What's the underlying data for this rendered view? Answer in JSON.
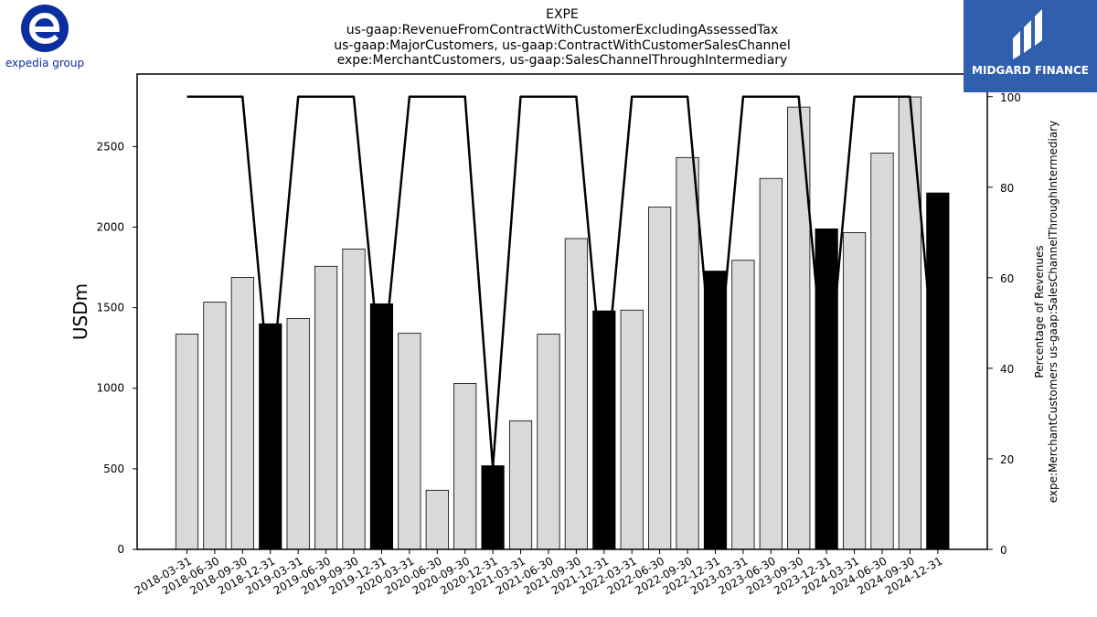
{
  "brand": {
    "left_logo_text": "expedia group",
    "right_logo_text": "MIDGARD FINANCE",
    "left_logo_color": "#0b2fa0",
    "right_logo_bg": "#2f5fad"
  },
  "chart_data": {
    "type": "bar",
    "title_lines": [
      "EXPE",
      "us-gaap:RevenueFromContractWithCustomerExcludingAssessedTax",
      "us-gaap:MajorCustomers, us-gaap:ContractWithCustomerSalesChannel",
      "expe:MerchantCustomers, us-gaap:SalesChannelThroughIntermediary"
    ],
    "ylabel": "USDm",
    "y2label_lines": [
      "Percentage of Revenues",
      "expe:MerchantCustomers us-gaap:SalesChannelThroughIntermediary"
    ],
    "categories": [
      "2018-03-31",
      "2018-06-30",
      "2018-09-30",
      "2018-12-31",
      "2019-03-31",
      "2019-06-30",
      "2019-09-30",
      "2019-12-31",
      "2020-03-31",
      "2020-06-30",
      "2020-09-30",
      "2020-12-31",
      "2021-03-31",
      "2021-06-30",
      "2021-09-30",
      "2021-12-31",
      "2022-03-31",
      "2022-06-30",
      "2022-09-30",
      "2022-12-31",
      "2023-03-31",
      "2023-06-30",
      "2023-09-30",
      "2023-12-31",
      "2024-03-31",
      "2024-06-30",
      "2024-09-30",
      "2024-12-31"
    ],
    "values": [
      1336,
      1534,
      1688,
      1400,
      1433,
      1757,
      1864,
      1524,
      1341,
      367,
      1030,
      519,
      798,
      1336,
      1929,
      1480,
      1485,
      2124,
      2432,
      1727,
      1794,
      2302,
      2745,
      1989,
      1966,
      2460,
      2808,
      2212
    ],
    "bar_colors": [
      "#d9d9d9",
      "#d9d9d9",
      "#d9d9d9",
      "#000000",
      "#d9d9d9",
      "#d9d9d9",
      "#d9d9d9",
      "#000000",
      "#d9d9d9",
      "#d9d9d9",
      "#d9d9d9",
      "#000000",
      "#d9d9d9",
      "#d9d9d9",
      "#d9d9d9",
      "#000000",
      "#d9d9d9",
      "#d9d9d9",
      "#d9d9d9",
      "#000000",
      "#d9d9d9",
      "#d9d9d9",
      "#d9d9d9",
      "#000000",
      "#d9d9d9",
      "#d9d9d9",
      "#d9d9d9",
      "#000000"
    ],
    "line_series": [
      100,
      100,
      100,
      33,
      100,
      100,
      100,
      37,
      100,
      100,
      100,
      18,
      100,
      100,
      100,
      33,
      100,
      100,
      100,
      33,
      100,
      100,
      100,
      33,
      100,
      100,
      100,
      33
    ],
    "ylim": [
      0,
      2950
    ],
    "y2lim": [
      0,
      105
    ],
    "yticks": [
      0,
      500,
      1000,
      1500,
      2000,
      2500
    ],
    "y2ticks": [
      0,
      20,
      40,
      60,
      80,
      100
    ],
    "grid": false
  }
}
